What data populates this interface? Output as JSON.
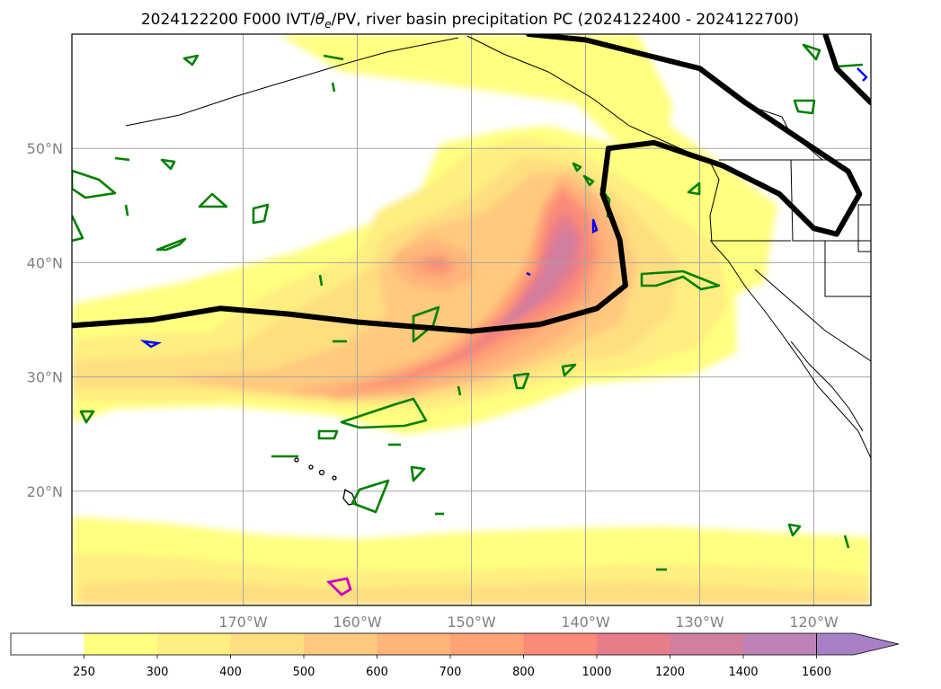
{
  "title": {
    "prefix": "2024122200 F000 IVT/",
    "theta_symbol": "θ",
    "theta_subscript": "e",
    "suffix": "/PV, river basin precipitation PC (2024122400 - 2024122700)"
  },
  "map": {
    "projection": "lat-lon",
    "lon_range": [
      -185,
      -115
    ],
    "lat_range": [
      10,
      60
    ],
    "gridlines": true,
    "lon_ticks": [
      {
        "value": -170,
        "label": "170°W"
      },
      {
        "value": -160,
        "label": "160°W"
      },
      {
        "value": -150,
        "label": "150°W"
      },
      {
        "value": -140,
        "label": "140°W"
      },
      {
        "value": -130,
        "label": "130°W"
      },
      {
        "value": -120,
        "label": "120°W"
      }
    ],
    "lat_ticks": [
      {
        "value": 20,
        "label": "20°N"
      },
      {
        "value": 30,
        "label": "30°N"
      },
      {
        "value": 40,
        "label": "40°N"
      },
      {
        "value": 50,
        "label": "50°N"
      }
    ],
    "colors": {
      "frame": "#000000",
      "gridline": "#a6a6a6",
      "coastline": "#000000",
      "pv_contour": "#000000",
      "theta_e_contour": "#008000",
      "blue_contour": "#0000ff",
      "magenta_contour": "#c800c8"
    }
  },
  "colorbar": {
    "levels": [
      "250",
      "300",
      "400",
      "500",
      "600",
      "700",
      "800",
      "1000",
      "1200",
      "1400",
      "1600"
    ],
    "colors": [
      "#ffffff",
      "#ffff80",
      "#ffee80",
      "#ffde80",
      "#ffc97e",
      "#ffb57a",
      "#ffa275",
      "#fb8b78",
      "#e87d8a",
      "#d27e9e",
      "#bd82b8",
      "#a780c6"
    ],
    "extend": "max"
  },
  "chart_data": {
    "type": "map",
    "variable": "IVT",
    "features": [
      {
        "kind": "atmospheric-river-core",
        "label_value": "1000",
        "path": [
          [
            -175,
            29
          ],
          [
            -160,
            29
          ],
          [
            -150,
            30
          ],
          [
            -145,
            32
          ],
          [
            -140,
            35
          ],
          [
            -137,
            40
          ],
          [
            -135,
            46
          ]
        ]
      },
      {
        "kind": "ivt-maximum",
        "lon": -150,
        "lat": 40,
        "label_value": "800"
      },
      {
        "kind": "ivt-maximum",
        "lon": -139,
        "lat": 36,
        "label_value": "1400"
      },
      {
        "kind": "ivt-maximum",
        "lon": -136,
        "lat": 43,
        "label_value": "1200"
      },
      {
        "kind": "pv-contour",
        "path": [
          [
            -185,
            34.5
          ],
          [
            -178,
            35
          ],
          [
            -172,
            36
          ],
          [
            -166,
            35.5
          ],
          [
            -160,
            34.8
          ],
          [
            -150,
            34
          ],
          [
            -144,
            34.6
          ],
          [
            -139,
            36
          ],
          [
            -136.5,
            38
          ],
          [
            -137,
            42
          ],
          [
            -138.5,
            46
          ],
          [
            -138,
            50
          ],
          [
            -134,
            50.5
          ],
          [
            -128,
            48.5
          ],
          [
            -123,
            46
          ],
          [
            -120,
            43
          ],
          [
            -118,
            42.5
          ],
          [
            -116,
            46
          ],
          [
            -117,
            48
          ],
          [
            -120,
            50
          ],
          [
            -126,
            54
          ],
          [
            -130,
            57
          ],
          [
            -140,
            59.5
          ],
          [
            -145,
            60
          ]
        ]
      },
      {
        "kind": "pv-contour",
        "path": [
          [
            -119,
            60
          ],
          [
            -118,
            57
          ],
          [
            -116,
            55
          ],
          [
            -115,
            54
          ]
        ]
      }
    ]
  }
}
